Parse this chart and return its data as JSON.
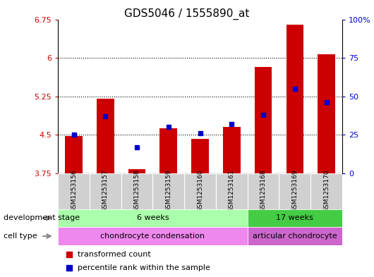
{
  "title": "GDS5046 / 1555890_at",
  "samples": [
    "GSM1253156",
    "GSM1253157",
    "GSM1253158",
    "GSM1253159",
    "GSM1253160",
    "GSM1253161",
    "GSM1253168",
    "GSM1253169",
    "GSM1253170"
  ],
  "transformed_count": [
    4.48,
    5.2,
    3.83,
    4.62,
    4.42,
    4.65,
    5.82,
    6.65,
    6.07
  ],
  "percentile_rank": [
    25,
    37,
    17,
    30,
    26,
    32,
    38,
    55,
    46
  ],
  "ylim_left": [
    3.75,
    6.75
  ],
  "ylim_right": [
    0,
    100
  ],
  "yticks_left": [
    3.75,
    4.5,
    5.25,
    6.0,
    6.75
  ],
  "yticks_right": [
    0,
    25,
    50,
    75,
    100
  ],
  "ytick_labels_left": [
    "3.75",
    "4.5",
    "5.25",
    "6",
    "6.75"
  ],
  "ytick_labels_right": [
    "0",
    "25",
    "50",
    "75",
    "100%"
  ],
  "grid_values": [
    4.5,
    5.25,
    6.0
  ],
  "bar_color": "#cc0000",
  "percentile_color": "#0000cc",
  "bar_width": 0.55,
  "development_stage_label": "development stage",
  "cell_type_label": "cell type",
  "dev_stage_groups": [
    {
      "label": "6 weeks",
      "start": 0,
      "end": 5,
      "color": "#aaffaa"
    },
    {
      "label": "17 weeks",
      "start": 6,
      "end": 8,
      "color": "#44cc44"
    }
  ],
  "cell_type_groups": [
    {
      "label": "chondrocyte condensation",
      "start": 0,
      "end": 5,
      "color": "#ee88ee"
    },
    {
      "label": "articular chondrocyte",
      "start": 6,
      "end": 8,
      "color": "#cc66cc"
    }
  ],
  "legend_bar_label": "transformed count",
  "legend_pct_label": "percentile rank within the sample",
  "bar_color_legend": "#cc0000",
  "pct_color_legend": "#0000cc",
  "left_tick_color": "#cc0000",
  "right_tick_color": "#0000cc",
  "title_fontsize": 11,
  "tick_fontsize": 8,
  "sample_fontsize": 6.5,
  "label_fontsize": 8,
  "legend_fontsize": 8,
  "xtick_bg": "#cccccc",
  "plot_bg": "#ffffff"
}
